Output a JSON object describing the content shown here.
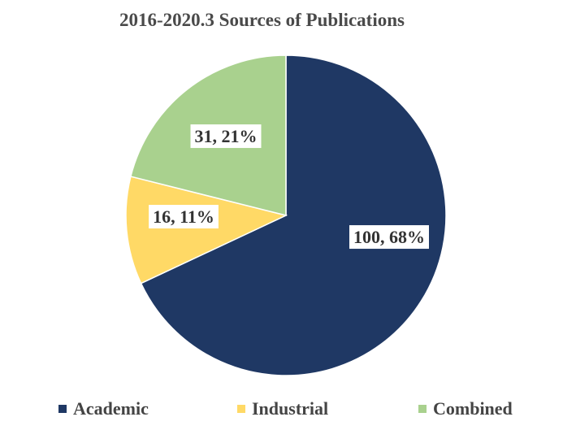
{
  "chart_data": {
    "type": "pie",
    "title": "2016-2020.3 Sources of Publications",
    "categories": [
      "Academic",
      "Industrial",
      "Combined"
    ],
    "values": [
      100,
      16,
      31
    ],
    "percentages": [
      68,
      11,
      21
    ],
    "data_labels": [
      "100, 68%",
      "16, 11%",
      "31, 21%"
    ],
    "colors": [
      "#1f3864",
      "#ffd966",
      "#a9d18e"
    ],
    "legend_position": "bottom"
  }
}
